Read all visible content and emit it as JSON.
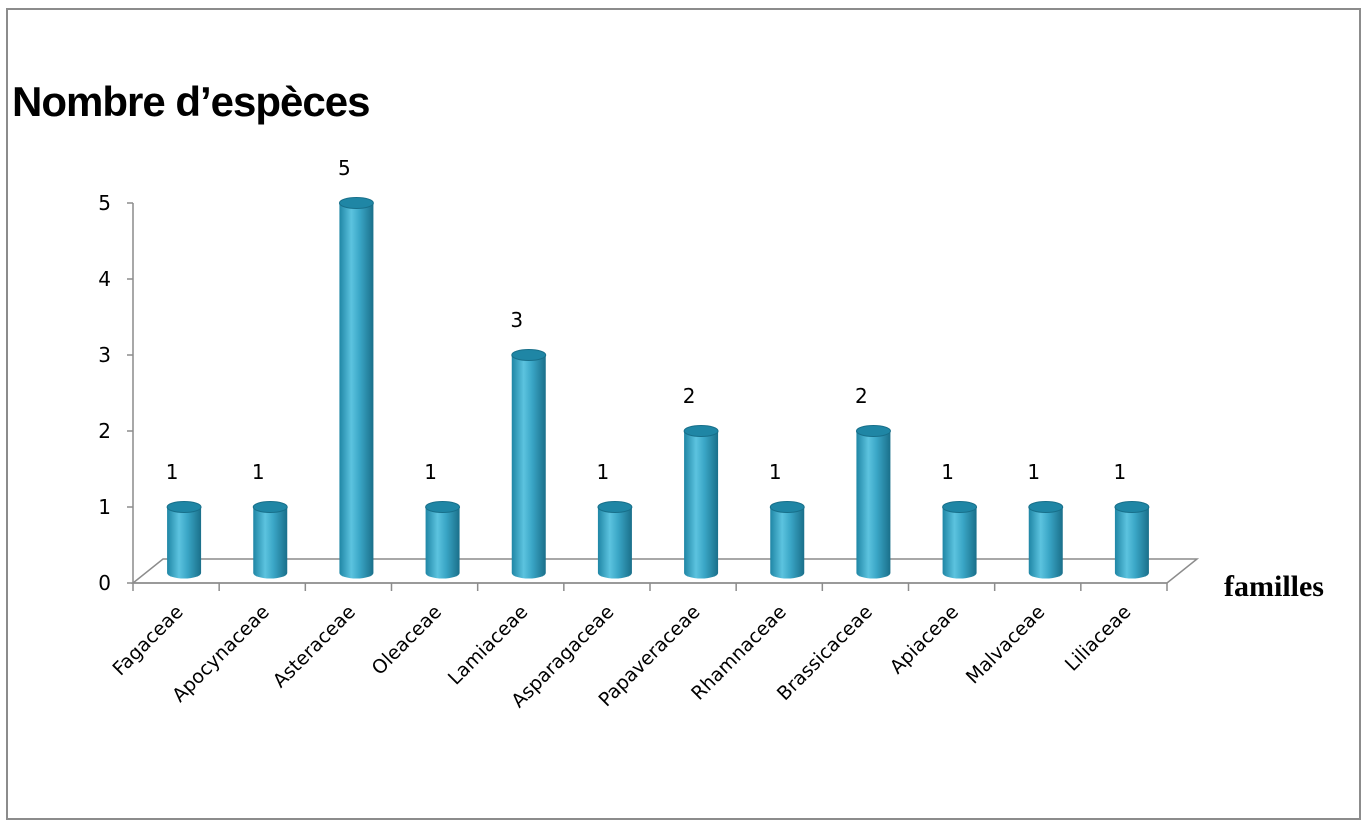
{
  "chart_data": {
    "type": "bar",
    "title": "",
    "ylabel": "Nombre d’espèces",
    "xlabel": "familles",
    "categories": [
      "Fagaceae",
      "Apocynaceae",
      "Asteraceae",
      "Oleaceae",
      "Lamiaceae",
      "Asparagaceae",
      "Papaveraceae",
      "Rhamnaceae",
      "Brassicaceae",
      "Apiaceae",
      "Malvaceae",
      "Liliaceae"
    ],
    "values": [
      1,
      1,
      5,
      1,
      3,
      1,
      2,
      1,
      2,
      1,
      1,
      1
    ],
    "data_labels": [
      "1",
      "1",
      "5",
      "1",
      "3",
      "1",
      "2",
      "1",
      "2",
      "1",
      "1",
      "1"
    ],
    "yticks": [
      "0",
      "1",
      "2",
      "3",
      "4",
      "5"
    ],
    "ylim": [
      0,
      5
    ],
    "grid": false,
    "legend": "none",
    "bar_shape": "3d-cylinder",
    "colors": {
      "bar": "#3aa6c6",
      "bar_light": "#7fd0e6",
      "bar_dark": "#1f7d9a",
      "axis": "#8c8c8c"
    }
  }
}
